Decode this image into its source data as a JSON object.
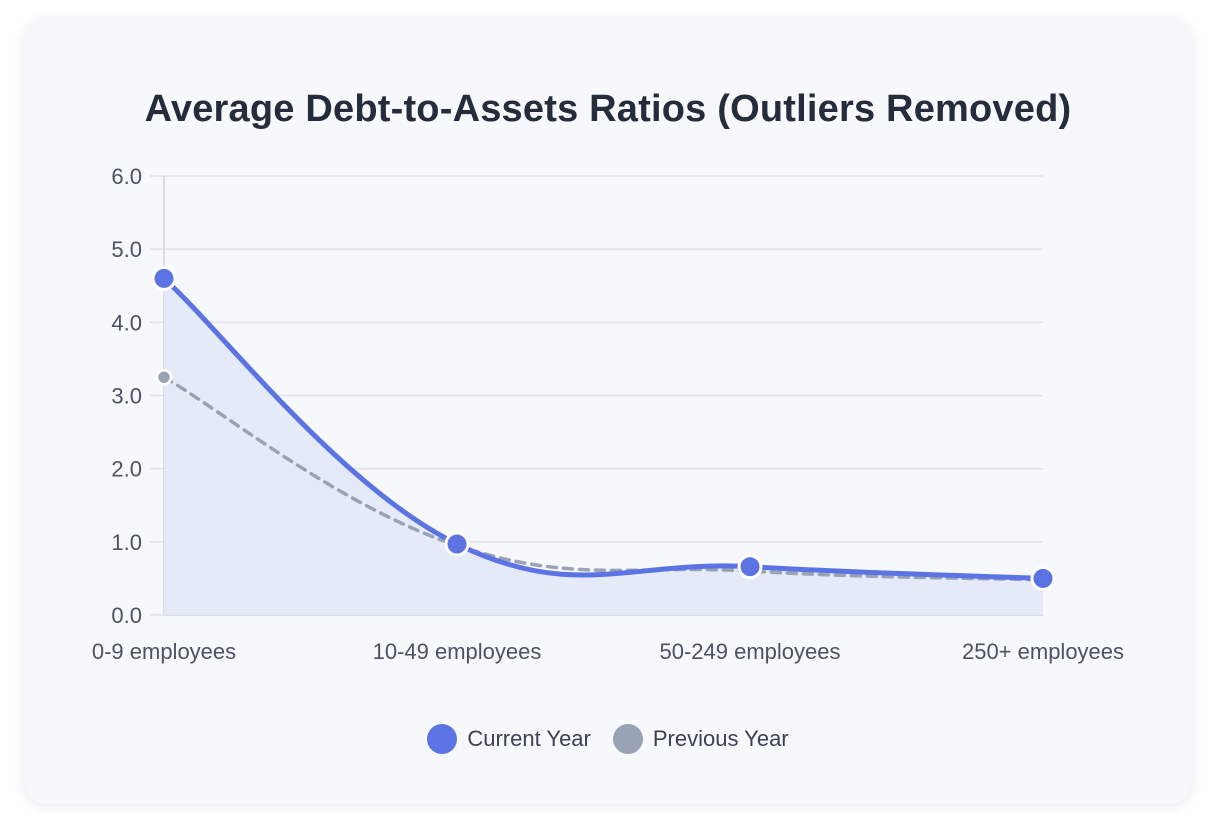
{
  "chart_data": {
    "type": "line",
    "title": "Average Debt-to-Assets Ratios (Outliers Removed)",
    "categories": [
      "0-9 employees",
      "10-49 employees",
      "50-249 employees",
      "250+ employees"
    ],
    "ylim": [
      0,
      6
    ],
    "yticks": [
      "0.0",
      "1.0",
      "2.0",
      "3.0",
      "4.0",
      "5.0",
      "6.0"
    ],
    "grid": true,
    "legend_position": "bottom",
    "series": [
      {
        "name": "Current Year",
        "values": [
          4.6,
          0.97,
          0.66,
          0.5
        ],
        "color": "#5b73e3",
        "style": "solid",
        "fill": "#e4e9f8"
      },
      {
        "name": "Previous Year",
        "values": [
          3.25,
          0.95,
          0.6,
          0.48
        ],
        "color": "#98a3b5",
        "style": "dashed"
      }
    ]
  }
}
